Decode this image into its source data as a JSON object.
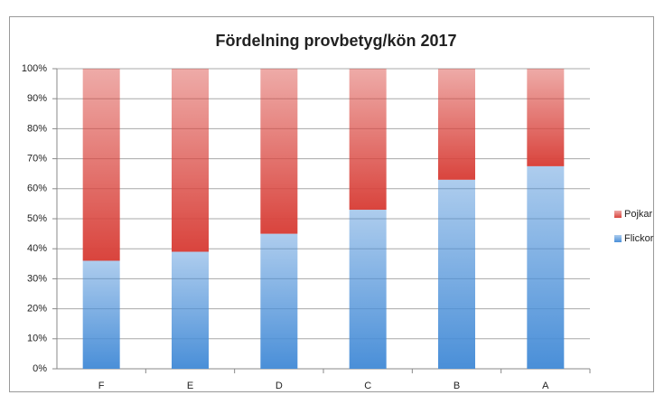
{
  "chart_data": {
    "type": "stacked_bar",
    "title": "Fördelning provbetyg/kön 2017",
    "categories": [
      "F",
      "E",
      "D",
      "C",
      "B",
      "A"
    ],
    "series": [
      {
        "name": "Flickor",
        "color": "#4a8fd8",
        "values": [
          36,
          39,
          45,
          53,
          63,
          67.5
        ]
      },
      {
        "name": "Pojkar",
        "color": "#d9443d",
        "values": [
          64,
          61,
          55,
          47,
          37,
          32.5
        ]
      }
    ],
    "ylim": [
      0,
      100
    ],
    "yticks": [
      {
        "value": 0,
        "label": "0%"
      },
      {
        "value": 10,
        "label": "10%"
      },
      {
        "value": 20,
        "label": "20%"
      },
      {
        "value": 30,
        "label": "30%"
      },
      {
        "value": 40,
        "label": "40%"
      },
      {
        "value": 50,
        "label": "50%"
      },
      {
        "value": 60,
        "label": "60%"
      },
      {
        "value": 70,
        "label": "70%"
      },
      {
        "value": 80,
        "label": "80%"
      },
      {
        "value": 90,
        "label": "90%"
      },
      {
        "value": 100,
        "label": "100%"
      }
    ],
    "grid": true,
    "legend": "right"
  }
}
